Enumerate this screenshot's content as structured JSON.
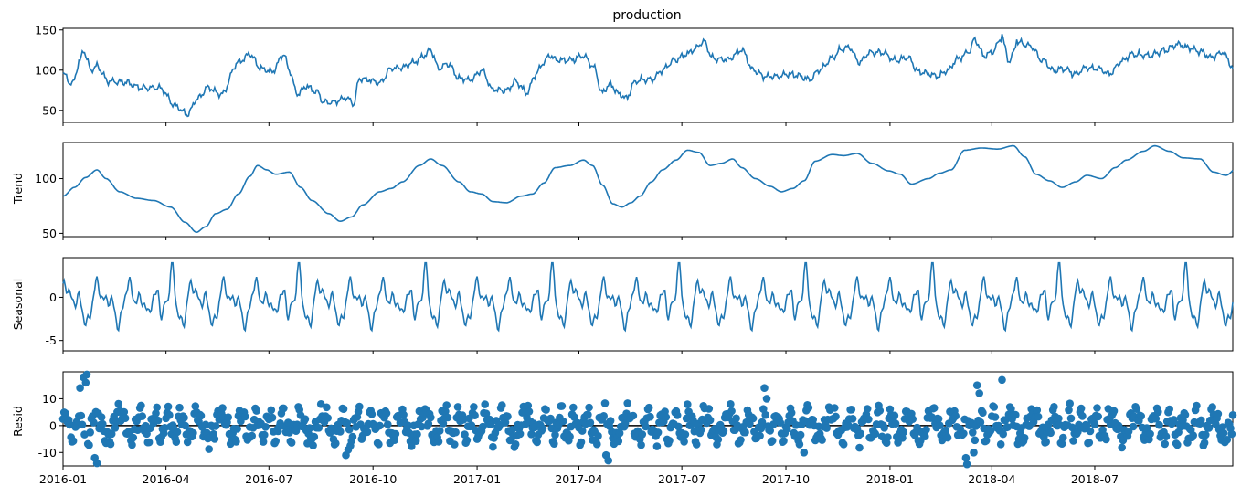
{
  "colors": {
    "series": "#1f77b4",
    "axis": "#000000",
    "zero_line": "#000000",
    "background": "#ffffff"
  },
  "chart_data": [
    {
      "type": "line",
      "panel": "observed",
      "title": "production",
      "ylabel": "",
      "x_start": "2016-01-01",
      "x_end": "2018-10-31",
      "x_ticks": [
        "2016-01",
        "2016-04",
        "2016-07",
        "2016-10",
        "2017-01",
        "2017-04",
        "2017-07",
        "2017-10",
        "2018-01",
        "2018-04",
        "2018-07"
      ],
      "ylim": [
        35,
        152
      ],
      "y_ticks": [
        50,
        100,
        150
      ],
      "knots": [
        [
          0,
          95
        ],
        [
          8,
          82
        ],
        [
          15,
          112
        ],
        [
          18,
          124
        ],
        [
          25,
          100
        ],
        [
          30,
          105
        ],
        [
          40,
          86
        ],
        [
          55,
          85
        ],
        [
          70,
          78
        ],
        [
          85,
          78
        ],
        [
          100,
          55
        ],
        [
          110,
          45
        ],
        [
          118,
          63
        ],
        [
          128,
          78
        ],
        [
          140,
          70
        ],
        [
          155,
          110
        ],
        [
          165,
          120
        ],
        [
          175,
          102
        ],
        [
          185,
          98
        ],
        [
          195,
          120
        ],
        [
          200,
          100
        ],
        [
          207,
          70
        ],
        [
          215,
          80
        ],
        [
          225,
          72
        ],
        [
          230,
          60
        ],
        [
          240,
          60
        ],
        [
          250,
          66
        ],
        [
          257,
          58
        ],
        [
          262,
          90
        ],
        [
          270,
          88
        ],
        [
          280,
          84
        ],
        [
          290,
          102
        ],
        [
          300,
          103
        ],
        [
          310,
          110
        ],
        [
          320,
          118
        ],
        [
          325,
          125
        ],
        [
          332,
          102
        ],
        [
          340,
          108
        ],
        [
          350,
          90
        ],
        [
          360,
          88
        ],
        [
          370,
          100
        ],
        [
          380,
          76
        ],
        [
          392,
          75
        ],
        [
          400,
          86
        ],
        [
          410,
          72
        ],
        [
          418,
          95
        ],
        [
          425,
          110
        ],
        [
          430,
          118
        ],
        [
          437,
          112
        ],
        [
          450,
          113
        ],
        [
          460,
          118
        ],
        [
          470,
          102
        ],
        [
          476,
          72
        ],
        [
          484,
          82
        ],
        [
          492,
          70
        ],
        [
          498,
          65
        ],
        [
          505,
          85
        ],
        [
          512,
          88
        ],
        [
          520,
          88
        ],
        [
          530,
          100
        ],
        [
          540,
          112
        ],
        [
          552,
          120
        ],
        [
          560,
          128
        ],
        [
          566,
          136
        ],
        [
          575,
          114
        ],
        [
          588,
          113
        ],
        [
          600,
          125
        ],
        [
          610,
          100
        ],
        [
          620,
          92
        ],
        [
          630,
          92
        ],
        [
          640,
          95
        ],
        [
          650,
          93
        ],
        [
          660,
          88
        ],
        [
          670,
          102
        ],
        [
          680,
          115
        ],
        [
          687,
          125
        ],
        [
          695,
          128
        ],
        [
          704,
          110
        ],
        [
          713,
          122
        ],
        [
          725,
          122
        ],
        [
          735,
          112
        ],
        [
          747,
          116
        ],
        [
          756,
          98
        ],
        [
          765,
          96
        ],
        [
          772,
          92
        ],
        [
          782,
          100
        ],
        [
          790,
          113
        ],
        [
          800,
          122
        ],
        [
          806,
          138
        ],
        [
          814,
          118
        ],
        [
          821,
          122
        ],
        [
          830,
          140
        ],
        [
          836,
          112
        ],
        [
          845,
          134
        ],
        [
          855,
          130
        ],
        [
          866,
          112
        ],
        [
          876,
          100
        ],
        [
          885,
          102
        ],
        [
          895,
          95
        ],
        [
          905,
          103
        ],
        [
          915,
          102
        ],
        [
          925,
          95
        ],
        [
          935,
          110
        ],
        [
          945,
          120
        ],
        [
          960,
          118
        ],
        [
          975,
          125
        ],
        [
          985,
          132
        ],
        [
          995,
          128
        ],
        [
          1005,
          123
        ],
        [
          1015,
          116
        ],
        [
          1025,
          122
        ],
        [
          1035,
          102
        ],
        [
          1045,
          108
        ],
        [
          1052,
          118
        ],
        [
          1062,
          112
        ],
        [
          1072,
          105
        ],
        [
          1080,
          112
        ],
        [
          1086,
          120
        ]
      ],
      "noise_amplitude": 5,
      "spikes": [
        [
          830,
          145
        ],
        [
          843,
          138
        ]
      ]
    },
    {
      "type": "line",
      "panel": "trend",
      "title": "",
      "ylabel": "Trend",
      "x_start": "2016-01-01",
      "x_end": "2018-10-31",
      "ylim": [
        47,
        133
      ],
      "y_ticks": [
        50,
        100
      ],
      "knots": [
        [
          0,
          84
        ],
        [
          10,
          92
        ],
        [
          20,
          101
        ],
        [
          30,
          108
        ],
        [
          38,
          100
        ],
        [
          50,
          88
        ],
        [
          65,
          82
        ],
        [
          80,
          80
        ],
        [
          95,
          74
        ],
        [
          108,
          60
        ],
        [
          118,
          51
        ],
        [
          126,
          56
        ],
        [
          135,
          68
        ],
        [
          145,
          72
        ],
        [
          155,
          86
        ],
        [
          165,
          102
        ],
        [
          172,
          112
        ],
        [
          180,
          108
        ],
        [
          188,
          104
        ],
        [
          200,
          106
        ],
        [
          210,
          92
        ],
        [
          220,
          80
        ],
        [
          235,
          68
        ],
        [
          245,
          61
        ],
        [
          255,
          65
        ],
        [
          265,
          76
        ],
        [
          280,
          88
        ],
        [
          290,
          91
        ],
        [
          300,
          97
        ],
        [
          315,
          112
        ],
        [
          325,
          118
        ],
        [
          335,
          112
        ],
        [
          350,
          97
        ],
        [
          360,
          88
        ],
        [
          370,
          86
        ],
        [
          380,
          79
        ],
        [
          392,
          78
        ],
        [
          405,
          84
        ],
        [
          415,
          86
        ],
        [
          425,
          96
        ],
        [
          435,
          110
        ],
        [
          448,
          112
        ],
        [
          460,
          117
        ],
        [
          468,
          112
        ],
        [
          477,
          94
        ],
        [
          486,
          77
        ],
        [
          494,
          74
        ],
        [
          502,
          78
        ],
        [
          510,
          84
        ],
        [
          520,
          97
        ],
        [
          530,
          108
        ],
        [
          542,
          117
        ],
        [
          552,
          126
        ],
        [
          562,
          124
        ],
        [
          572,
          112
        ],
        [
          582,
          114
        ],
        [
          592,
          118
        ],
        [
          600,
          110
        ],
        [
          612,
          100
        ],
        [
          625,
          93
        ],
        [
          635,
          88
        ],
        [
          645,
          91
        ],
        [
          655,
          98
        ],
        [
          665,
          116
        ],
        [
          680,
          122
        ],
        [
          690,
          121
        ],
        [
          702,
          123
        ],
        [
          715,
          114
        ],
        [
          730,
          107
        ],
        [
          740,
          104
        ],
        [
          750,
          95
        ],
        [
          765,
          100
        ],
        [
          775,
          105
        ],
        [
          785,
          108
        ],
        [
          797,
          126
        ],
        [
          812,
          128
        ],
        [
          826,
          127
        ],
        [
          840,
          130
        ],
        [
          850,
          120
        ],
        [
          860,
          104
        ],
        [
          872,
          98
        ],
        [
          883,
          92
        ],
        [
          895,
          97
        ],
        [
          905,
          103
        ],
        [
          918,
          100
        ],
        [
          930,
          110
        ],
        [
          940,
          117
        ],
        [
          955,
          125
        ],
        [
          965,
          130
        ],
        [
          978,
          125
        ],
        [
          990,
          119
        ],
        [
          1005,
          118
        ],
        [
          1017,
          106
        ],
        [
          1028,
          103
        ],
        [
          1040,
          112
        ],
        [
          1055,
          112
        ],
        [
          1075,
          113
        ],
        [
          1086,
          114
        ]
      ]
    },
    {
      "type": "line",
      "panel": "seasonal",
      "title": "",
      "ylabel": "Seasonal",
      "x_start": "2016-01-01",
      "x_end": "2018-10-31",
      "ylim": [
        -6.2,
        4.6
      ],
      "y_ticks": [
        -5,
        0
      ],
      "period_days": 112
    },
    {
      "type": "scatter",
      "panel": "resid",
      "title": "",
      "ylabel": "Resid",
      "x_start": "2016-01-01",
      "x_end": "2018-10-31",
      "ylim": [
        -15,
        20
      ],
      "y_ticks": [
        -10,
        0,
        10
      ],
      "baseline": 0,
      "noise_amplitude": 5,
      "outliers": [
        [
          18,
          18
        ],
        [
          21,
          19
        ],
        [
          20,
          16
        ],
        [
          15,
          14
        ],
        [
          620,
          14
        ],
        [
          622,
          10
        ],
        [
          808,
          15
        ],
        [
          810,
          12
        ],
        [
          830,
          17
        ],
        [
          798,
          -12
        ],
        [
          799,
          -15
        ],
        [
          805,
          -10
        ],
        [
          480,
          -11
        ],
        [
          482,
          -13
        ],
        [
          655,
          -10
        ],
        [
          250,
          -11
        ],
        [
          252,
          -9
        ],
        [
          30,
          -14
        ],
        [
          28,
          -12
        ]
      ]
    }
  ]
}
